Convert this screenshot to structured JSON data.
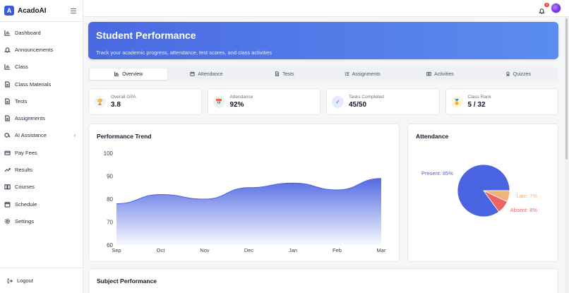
{
  "app": {
    "logo_letter": "A",
    "name": "AcadoAI"
  },
  "sidebar": {
    "items": [
      {
        "label": "Dashboard",
        "icon": "bar-chart-icon"
      },
      {
        "label": "Announcements",
        "icon": "bell-icon"
      },
      {
        "label": "Class",
        "icon": "bar-chart-icon"
      },
      {
        "label": "Class Materials",
        "icon": "file-icon"
      },
      {
        "label": "Tests",
        "icon": "file-icon"
      },
      {
        "label": "Assignments",
        "icon": "file-icon"
      },
      {
        "label": "AI Assistance",
        "icon": "brain-icon"
      },
      {
        "label": "Pay Fees",
        "icon": "card-icon"
      },
      {
        "label": "Results",
        "icon": "trending-up-icon"
      },
      {
        "label": "Courses",
        "icon": "book-icon"
      },
      {
        "label": "Schedule",
        "icon": "calendar-icon"
      },
      {
        "label": "Settings",
        "icon": "gear-icon"
      }
    ],
    "logout": "Logout"
  },
  "topbar": {
    "notification_count": "3"
  },
  "hero": {
    "title": "Student Performance",
    "subtitle": "Track your academic progress, attendance, test scores, and class activities"
  },
  "tabs": [
    {
      "label": "Overview",
      "icon": "bar-chart-icon",
      "active": true
    },
    {
      "label": "Attendance",
      "icon": "calendar-icon"
    },
    {
      "label": "Tests",
      "icon": "file-icon"
    },
    {
      "label": "Assignments",
      "icon": "list-icon"
    },
    {
      "label": "Activities",
      "icon": "book-icon"
    },
    {
      "label": "Quizzes",
      "icon": "award-icon"
    }
  ],
  "stats": [
    {
      "label": "Overall GPA",
      "value": "3.8",
      "icon": "trophy-icon",
      "color": "#f3f4f6"
    },
    {
      "label": "Attendance",
      "value": "92%",
      "icon": "calendar-icon",
      "color": "#e6f6ec"
    },
    {
      "label": "Tasks Completed",
      "value": "45/50",
      "icon": "check-icon",
      "color": "#e3ebfd"
    },
    {
      "label": "Class Rank",
      "value": "5 / 32",
      "icon": "medal-icon",
      "color": "#fef7d6"
    }
  ],
  "trend": {
    "title": "Performance Trend"
  },
  "attendance_card": {
    "title": "Attendance"
  },
  "subject": {
    "title": "Subject Performance"
  },
  "colors": {
    "accent": "#4a69e2",
    "present": "#4a63e0",
    "late": "#f2b27c",
    "absent": "#ee6464"
  },
  "chart_data": [
    {
      "type": "area",
      "title": "Performance Trend",
      "categories": [
        "Sep",
        "Oct",
        "Nov",
        "Dec",
        "Jan",
        "Feb",
        "Mar"
      ],
      "values": [
        78,
        82,
        80,
        85,
        87,
        84,
        89
      ],
      "ylim": [
        60,
        100
      ],
      "yticks": [
        60,
        70,
        80,
        90,
        100
      ],
      "grid": false
    },
    {
      "type": "pie",
      "title": "Attendance",
      "slices": [
        {
          "label": "Present: 85%",
          "value": 85
        },
        {
          "label": "Late: 7%",
          "value": 7
        },
        {
          "label": "Absent: 8%",
          "value": 8
        }
      ]
    }
  ]
}
